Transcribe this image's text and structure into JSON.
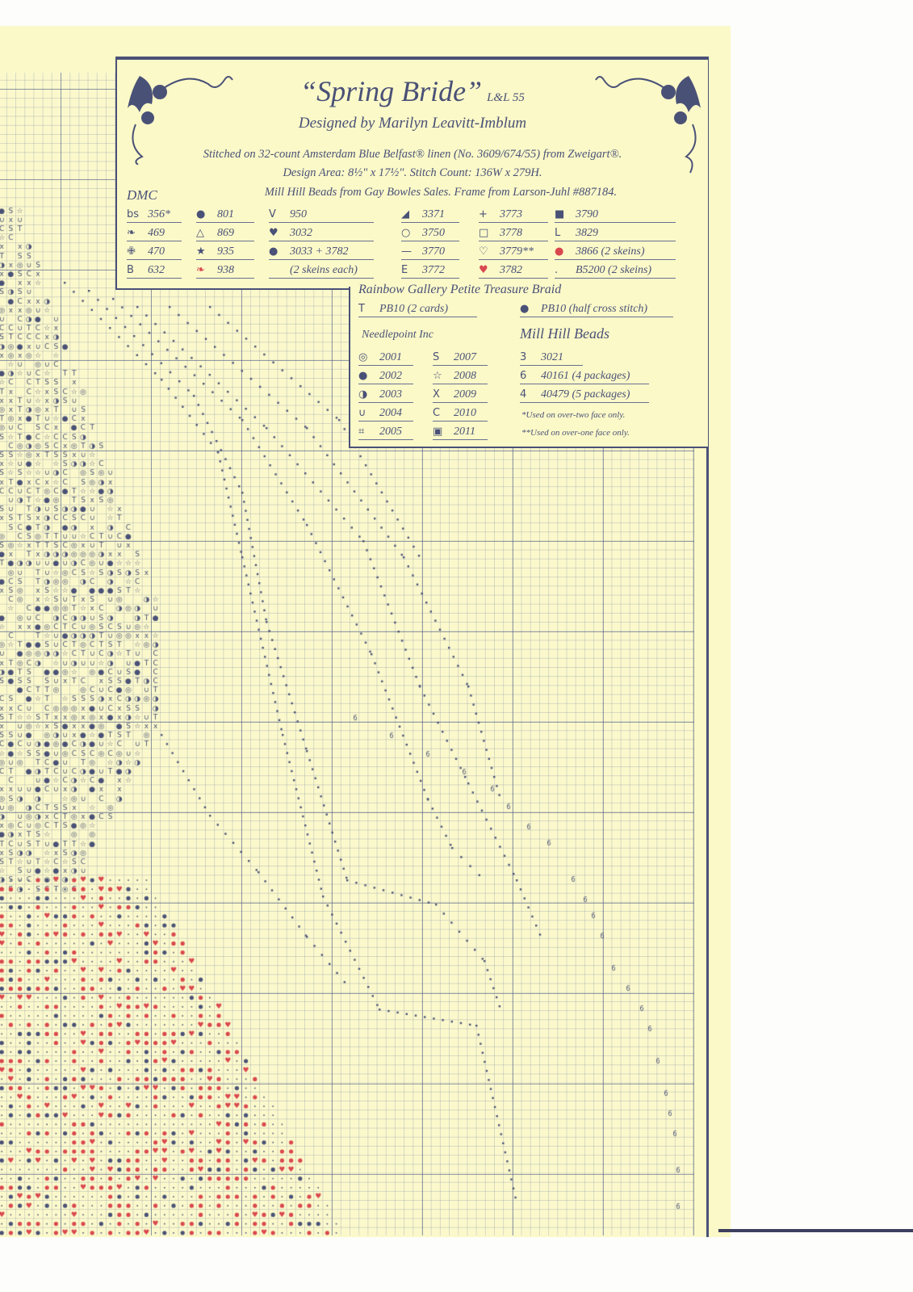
{
  "header": {
    "title": "“Spring Bride”",
    "code": "L&L 55",
    "designer": "Designed by Marilyn Leavitt-Imblum",
    "fabric": "Stitched on 32-count Amsterdam Blue Belfast® linen (No. 3609/674/55) from Zweigart®.",
    "design_area": "Design Area: 8½\" x 17½\". Stitch Count: 136W x 279H.",
    "suppliers": "Mill Hill Beads from Gay Bowles Sales. Frame from Larson-Juhl #887184."
  },
  "dmc": {
    "label": "DMC",
    "items": [
      {
        "symbol": "bs",
        "code": "356*"
      },
      {
        "symbol": "❧",
        "code": "469"
      },
      {
        "symbol": "✙",
        "code": "470"
      },
      {
        "symbol": "B",
        "code": "632"
      },
      {
        "symbol": "●",
        "code": "801"
      },
      {
        "symbol": "△",
        "code": "869"
      },
      {
        "symbol": "★",
        "code": "935"
      },
      {
        "symbol": "❧",
        "code": "938",
        "color": "#d9474f"
      },
      {
        "symbol": "V",
        "code": "950"
      },
      {
        "symbol": "♥",
        "code": "3032"
      },
      {
        "symbol": "●",
        "code": "3033 + 3782"
      },
      {
        "symbol": "",
        "code": "(2 skeins each)"
      },
      {
        "symbol": "◢",
        "code": "3371"
      },
      {
        "symbol": "○",
        "code": "3750"
      },
      {
        "symbol": "—",
        "code": "3770"
      },
      {
        "symbol": "E",
        "code": "3772"
      },
      {
        "symbol": "+",
        "code": "3773"
      },
      {
        "symbol": "□",
        "code": "3778"
      },
      {
        "symbol": "♡",
        "code": "3779**"
      },
      {
        "symbol": "♥",
        "code": "3782",
        "color": "#d9474f"
      },
      {
        "symbol": "■",
        "code": "3790"
      },
      {
        "symbol": "L",
        "code": "3829"
      },
      {
        "symbol": "●",
        "code": "3866 (2 skeins)",
        "color": "#d9474f"
      },
      {
        "symbol": ".",
        "code": "B5200 (2 skeins)"
      }
    ]
  },
  "rainbow": {
    "heading": "Rainbow Gallery Petite Treasure Braid",
    "items": [
      {
        "symbol": "T",
        "code": "PB10 (2 cards)"
      },
      {
        "symbol": "●",
        "code": "PB10 (half cross stitch)"
      }
    ]
  },
  "needlepoint": {
    "heading": "Needlepoint Inc",
    "items": [
      {
        "symbol": "◎",
        "code": "2001"
      },
      {
        "symbol": "●",
        "code": "2002"
      },
      {
        "symbol": "◑",
        "code": "2003"
      },
      {
        "symbol": "∪",
        "code": "2004"
      },
      {
        "symbol": "⌗",
        "code": "2005"
      },
      {
        "symbol": "S",
        "code": "2007"
      },
      {
        "symbol": "☆",
        "code": "2008"
      },
      {
        "symbol": "X",
        "code": "2009"
      },
      {
        "symbol": "C",
        "code": "2010"
      },
      {
        "symbol": "▣",
        "code": "2011"
      }
    ]
  },
  "millhill": {
    "heading": "Mill Hill Beads",
    "items": [
      {
        "symbol": "3",
        "code": "3021"
      },
      {
        "symbol": "6",
        "code": "40161 (4 packages)"
      },
      {
        "symbol": "4",
        "code": "40479 (5 packages)"
      }
    ],
    "notes": [
      "*Used on over-two face only.",
      "**Used on over-one face only."
    ]
  },
  "colors": {
    "ink": "#4a5177",
    "red": "#d9474f",
    "paper": "#fbf9c8"
  }
}
